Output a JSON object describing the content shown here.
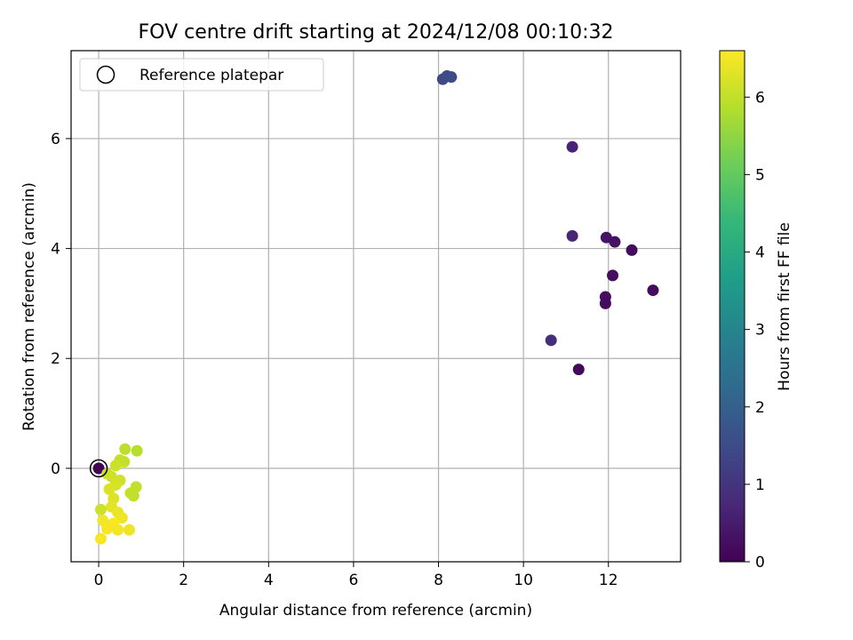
{
  "chart_data": {
    "type": "scatter",
    "title": "FOV centre drift starting at 2024/12/08 00:10:32",
    "xlabel": "Angular distance from reference (arcmin)",
    "ylabel": "Rotation from reference (arcmin)",
    "xlim": [
      -0.65,
      13.7
    ],
    "ylim": [
      -1.7,
      7.6
    ],
    "xticks": [
      0,
      2,
      4,
      6,
      8,
      10,
      12
    ],
    "yticks": [
      0,
      2,
      4,
      6
    ],
    "grid": true,
    "legend": {
      "placement": "upper-left",
      "entries": [
        "Reference platepar"
      ]
    },
    "reference_point": {
      "x": 0,
      "y": 0
    },
    "colorbar": {
      "label": "Hours from first FF file",
      "range": [
        0,
        6.6
      ],
      "ticks": [
        0,
        1,
        2,
        3,
        4,
        5,
        6
      ],
      "colormap": "viridis"
    },
    "points": [
      {
        "x": 0.0,
        "y": 0.0,
        "h": 0.05
      },
      {
        "x": 11.15,
        "y": 5.85,
        "h": 0.65
      },
      {
        "x": 11.15,
        "y": 4.23,
        "h": 0.7
      },
      {
        "x": 11.95,
        "y": 4.2,
        "h": 0.35
      },
      {
        "x": 12.15,
        "y": 4.12,
        "h": 0.3
      },
      {
        "x": 12.55,
        "y": 3.97,
        "h": 0.2
      },
      {
        "x": 12.1,
        "y": 3.51,
        "h": 0.25
      },
      {
        "x": 13.05,
        "y": 3.24,
        "h": 0.2
      },
      {
        "x": 11.93,
        "y": 3.12,
        "h": 0.25
      },
      {
        "x": 11.93,
        "y": 3.0,
        "h": 0.2
      },
      {
        "x": 10.65,
        "y": 2.33,
        "h": 0.85
      },
      {
        "x": 11.3,
        "y": 1.8,
        "h": 0.15
      },
      {
        "x": 8.1,
        "y": 7.08,
        "h": 1.45
      },
      {
        "x": 8.2,
        "y": 7.14,
        "h": 1.5
      },
      {
        "x": 8.3,
        "y": 7.12,
        "h": 1.5
      },
      {
        "x": 0.62,
        "y": 0.35,
        "h": 5.95
      },
      {
        "x": 0.9,
        "y": 0.32,
        "h": 5.9
      },
      {
        "x": 0.5,
        "y": 0.15,
        "h": 6.0
      },
      {
        "x": 0.6,
        "y": 0.12,
        "h": 6.05
      },
      {
        "x": 0.4,
        "y": 0.05,
        "h": 6.1
      },
      {
        "x": 0.2,
        "y": -0.1,
        "h": 6.1
      },
      {
        "x": 0.3,
        "y": -0.15,
        "h": 6.15
      },
      {
        "x": 0.5,
        "y": -0.22,
        "h": 6.15
      },
      {
        "x": 0.4,
        "y": -0.3,
        "h": 6.2
      },
      {
        "x": 0.88,
        "y": -0.34,
        "h": 6.0
      },
      {
        "x": 0.25,
        "y": -0.38,
        "h": 6.25
      },
      {
        "x": 0.75,
        "y": -0.45,
        "h": 6.05
      },
      {
        "x": 0.82,
        "y": -0.5,
        "h": 6.0
      },
      {
        "x": 0.35,
        "y": -0.55,
        "h": 6.3
      },
      {
        "x": 0.3,
        "y": -0.7,
        "h": 6.35
      },
      {
        "x": 0.05,
        "y": -0.75,
        "h": 6.1
      },
      {
        "x": 0.45,
        "y": -0.8,
        "h": 6.4
      },
      {
        "x": 0.55,
        "y": -0.9,
        "h": 6.45
      },
      {
        "x": 0.1,
        "y": -0.95,
        "h": 6.5
      },
      {
        "x": 0.35,
        "y": -1.0,
        "h": 6.55
      },
      {
        "x": 0.2,
        "y": -1.1,
        "h": 6.55
      },
      {
        "x": 0.45,
        "y": -1.12,
        "h": 6.5
      },
      {
        "x": 0.72,
        "y": -1.12,
        "h": 6.45
      },
      {
        "x": 0.05,
        "y": -1.28,
        "h": 6.55
      }
    ]
  }
}
